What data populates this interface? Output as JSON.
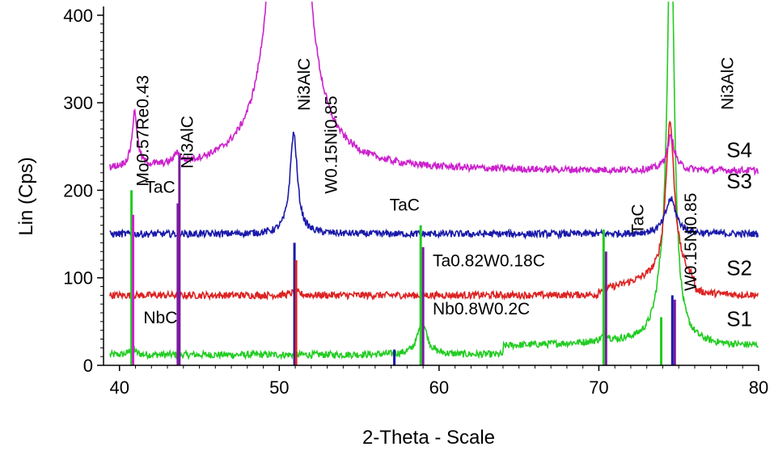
{
  "chart_data": {
    "type": "line",
    "title": "",
    "xlabel": "2-Theta - Scale",
    "ylabel": "Lin (Cps)",
    "xlim": [
      39,
      80
    ],
    "ylim": [
      0,
      410
    ],
    "x_ticks": [
      40,
      50,
      60,
      70,
      80
    ],
    "y_ticks": [
      0,
      100,
      200,
      300,
      400
    ],
    "grid": false,
    "series": [
      {
        "name": "S1",
        "color": "#22cc22",
        "baseline": 12,
        "peaks": [
          [
            40.8,
            12,
            0.15
          ],
          [
            58.95,
            38,
            0.35
          ],
          [
            70.4,
            10,
            0.2
          ],
          [
            73.9,
            35,
            0.45
          ],
          [
            74.5,
            500,
            0.25
          ]
        ],
        "rise": [
          [
            64,
            80,
            10,
            20
          ]
        ],
        "label_y": 45
      },
      {
        "name": "S2",
        "color": "#dd2222",
        "baseline": 80,
        "peaks": [
          [
            51.0,
            4,
            0.3
          ],
          [
            74.45,
            175,
            0.32
          ]
        ],
        "rise": [
          [
            70,
            76,
            5,
            30
          ]
        ],
        "label_y": 103
      },
      {
        "name": "S3",
        "color": "#1a1aaa",
        "baseline": 150,
        "peaks": [
          [
            50.9,
            115,
            0.28
          ],
          [
            74.5,
            40,
            0.4
          ]
        ],
        "rise": [],
        "label_y": 202
      },
      {
        "name": "S4",
        "color": "#cc22cc",
        "baseline": 222,
        "peaks": [
          [
            40.95,
            62,
            0.2
          ],
          [
            43.6,
            12,
            0.2
          ],
          [
            50.6,
            900,
            0.75
          ],
          [
            74.5,
            38,
            0.3
          ]
        ],
        "rise": [],
        "label_y": 238
      }
    ],
    "reference_lines": [
      {
        "x": 40.75,
        "y": 200,
        "color": "#22cc22"
      },
      {
        "x": 40.85,
        "y": 172,
        "color": "#cc22cc"
      },
      {
        "x": 43.65,
        "y": 185,
        "color": "#7a1aa0"
      },
      {
        "x": 43.75,
        "y": 240,
        "color": "#7a1aa0"
      },
      {
        "x": 50.95,
        "y": 140,
        "color": "#1a1aaa"
      },
      {
        "x": 51.05,
        "y": 120,
        "color": "#dd2222"
      },
      {
        "x": 57.2,
        "y": 18,
        "color": "#1a1aaa"
      },
      {
        "x": 58.85,
        "y": 160,
        "color": "#22cc22"
      },
      {
        "x": 59.0,
        "y": 135,
        "color": "#7a1aa0"
      },
      {
        "x": 70.3,
        "y": 155,
        "color": "#22cc22"
      },
      {
        "x": 70.45,
        "y": 130,
        "color": "#7a1aa0"
      },
      {
        "x": 73.9,
        "y": 55,
        "color": "#22cc22"
      },
      {
        "x": 74.6,
        "y": 80,
        "color": "#1a1aaa"
      },
      {
        "x": 74.75,
        "y": 75,
        "color": "#7a1aa0"
      }
    ],
    "annotations": [
      {
        "text": "Mo0.57Re0.43",
        "x": 41.8,
        "y": 268,
        "rotate": true
      },
      {
        "text": "Ni3AlC",
        "x": 44.6,
        "y": 255,
        "rotate": true
      },
      {
        "text": "Ni3AlC",
        "x": 51.9,
        "y": 321,
        "rotate": true
      },
      {
        "text": "W0.15Ni0.85",
        "x": 53.6,
        "y": 252,
        "rotate": true
      },
      {
        "text": "TaC",
        "x": 41.6,
        "y": 197,
        "rotate": false
      },
      {
        "text": "TaC",
        "x": 56.9,
        "y": 177,
        "rotate": false
      },
      {
        "text": "TaC",
        "x": 72.8,
        "y": 167,
        "rotate": true
      },
      {
        "text": "Ta0.82W0.18C",
        "x": 59.6,
        "y": 113,
        "rotate": false
      },
      {
        "text": "Nb0.8W0.2C",
        "x": 59.6,
        "y": 58,
        "rotate": false
      },
      {
        "text": "NbC",
        "x": 41.5,
        "y": 48,
        "rotate": false
      },
      {
        "text": "W0.15Ni0.85",
        "x": 76.1,
        "y": 141,
        "rotate": true
      },
      {
        "text": "Ni3AlC",
        "x": 78.4,
        "y": 322,
        "rotate": true
      }
    ]
  }
}
